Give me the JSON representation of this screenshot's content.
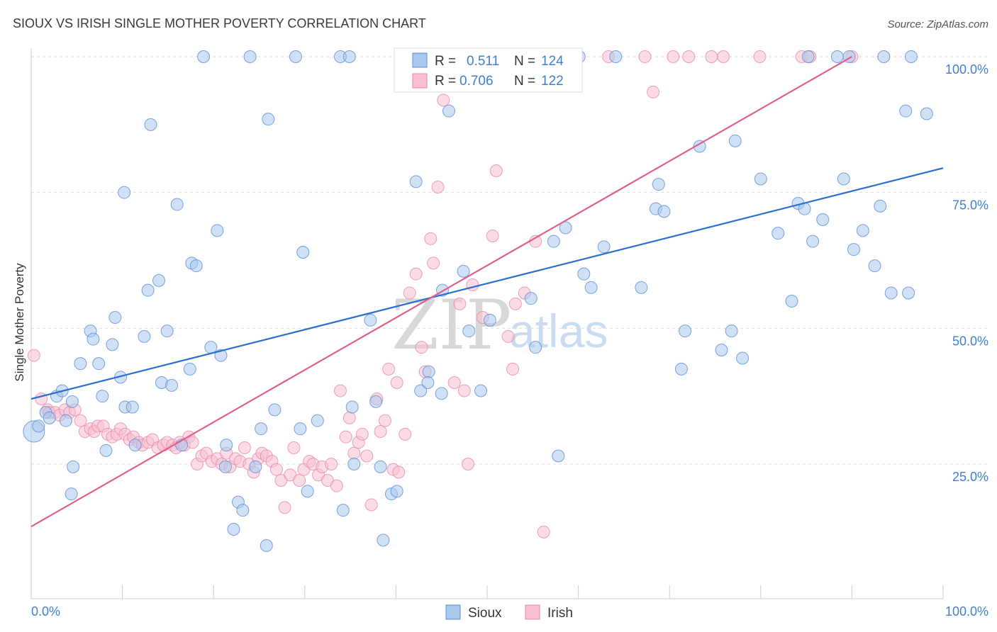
{
  "title": "SIOUX VS IRISH SINGLE MOTHER POVERTY CORRELATION CHART",
  "source": "Source: ZipAtlas.com",
  "watermark": {
    "zip": "ZIP",
    "atlas": "atlas"
  },
  "colors": {
    "sioux_fill": "#a9c8ee",
    "sioux_stroke": "#5b8fd6",
    "sioux_line": "#2a6fd0",
    "irish_fill": "#f7bfd0",
    "irish_stroke": "#e98aa8",
    "irish_line": "#e0608a",
    "tick_text": "#3f7fd0",
    "grid": "#dddddd"
  },
  "legend_top": {
    "rows": [
      {
        "r_label": "R = ",
        "r_value": "0.511",
        "n_label": "N = ",
        "n_value": "124"
      },
      {
        "r_label": "R = ",
        "r_value": "0.706",
        "n_label": "N = ",
        "n_value": "122"
      }
    ]
  },
  "legend_bottom": {
    "items": [
      "Sioux",
      "Irish"
    ]
  },
  "chart_data": {
    "type": "scatter",
    "title": "SIOUX VS IRISH SINGLE MOTHER POVERTY CORRELATION CHART",
    "xlabel": "",
    "ylabel": "Single Mother Poverty",
    "xlim": [
      0,
      100
    ],
    "ylim": [
      0,
      103
    ],
    "x_tick_labels": [
      "0.0%",
      "100.0%"
    ],
    "y_ticks": [
      25,
      50,
      75,
      100
    ],
    "y_tick_labels": [
      "25.0%",
      "50.0%",
      "75.0%",
      "100.0%"
    ],
    "grid": "horizontal dashed",
    "series": [
      {
        "name": "Sioux",
        "R": 0.511,
        "N": 124,
        "trend": {
          "x": [
            0,
            100
          ],
          "y": [
            37.0,
            79.5
          ]
        },
        "points": [
          [
            0.3,
            31.0
          ],
          [
            0.8,
            32.0
          ],
          [
            1.6,
            34.5
          ],
          [
            2.0,
            33.5
          ],
          [
            2.8,
            37.5
          ],
          [
            3.4,
            38.5
          ],
          [
            3.8,
            33.0
          ],
          [
            4.5,
            36.5
          ],
          [
            4.6,
            24.5
          ],
          [
            4.4,
            19.5
          ],
          [
            5.4,
            43.5
          ],
          [
            6.5,
            49.5
          ],
          [
            6.8,
            48.0
          ],
          [
            7.4,
            43.5
          ],
          [
            7.8,
            37.5
          ],
          [
            8.2,
            27.5
          ],
          [
            8.9,
            47.0
          ],
          [
            9.2,
            52.0
          ],
          [
            9.8,
            41.0
          ],
          [
            10.3,
            35.5
          ],
          [
            11.1,
            35.5
          ],
          [
            10.2,
            75.0
          ],
          [
            11.4,
            28.5
          ],
          [
            12.4,
            48.5
          ],
          [
            12.8,
            57.0
          ],
          [
            13.1,
            87.5
          ],
          [
            14.0,
            58.8
          ],
          [
            14.3,
            40.0
          ],
          [
            14.9,
            49.5
          ],
          [
            15.4,
            39.5
          ],
          [
            16.0,
            72.8
          ],
          [
            16.5,
            28.5
          ],
          [
            17.4,
            42.5
          ],
          [
            17.6,
            62.0
          ],
          [
            18.1,
            61.5
          ],
          [
            18.9,
            100.0
          ],
          [
            19.7,
            46.5
          ],
          [
            20.4,
            68.0
          ],
          [
            20.8,
            45.0
          ],
          [
            21.4,
            28.5
          ],
          [
            21.3,
            24.5
          ],
          [
            22.2,
            13.0
          ],
          [
            22.7,
            18.0
          ],
          [
            23.2,
            16.5
          ],
          [
            24.0,
            100.0
          ],
          [
            24.6,
            24.5
          ],
          [
            25.2,
            31.5
          ],
          [
            25.8,
            10.0
          ],
          [
            26.0,
            88.5
          ],
          [
            26.7,
            35.0
          ],
          [
            29.0,
            100.0
          ],
          [
            29.5,
            31.5
          ],
          [
            29.8,
            64.0
          ],
          [
            30.3,
            20.0
          ],
          [
            31.4,
            33.0
          ],
          [
            33.9,
            100.0
          ],
          [
            34.2,
            16.5
          ],
          [
            34.9,
            100.0
          ],
          [
            35.2,
            35.5
          ],
          [
            35.4,
            25.0
          ],
          [
            37.2,
            51.5
          ],
          [
            37.8,
            36.5
          ],
          [
            38.3,
            24.5
          ],
          [
            38.6,
            11.0
          ],
          [
            39.5,
            19.5
          ],
          [
            40.1,
            20.0
          ],
          [
            42.2,
            77.0
          ],
          [
            42.7,
            38.5
          ],
          [
            43.6,
            42.0
          ],
          [
            43.5,
            40.0
          ],
          [
            45.0,
            38.0
          ],
          [
            45.1,
            57.0
          ],
          [
            45.8,
            90.0
          ],
          [
            47.4,
            60.5
          ],
          [
            48.0,
            49.5
          ],
          [
            49.3,
            38.5
          ],
          [
            50.3,
            51.5
          ],
          [
            54.8,
            55.5
          ],
          [
            55.3,
            46.5
          ],
          [
            57.3,
            66.0
          ],
          [
            56.8,
            100.0
          ],
          [
            57.8,
            26.5
          ],
          [
            58.6,
            68.5
          ],
          [
            60.1,
            100.0
          ],
          [
            60.6,
            60.0
          ],
          [
            61.4,
            57.5
          ],
          [
            62.8,
            65.0
          ],
          [
            64.1,
            100.0
          ],
          [
            66.9,
            57.5
          ],
          [
            68.5,
            72.0
          ],
          [
            68.8,
            76.5
          ],
          [
            69.4,
            71.5
          ],
          [
            71.3,
            42.5
          ],
          [
            71.7,
            49.5
          ],
          [
            73.3,
            83.5
          ],
          [
            75.7,
            46.0
          ],
          [
            76.8,
            49.5
          ],
          [
            77.2,
            84.5
          ],
          [
            78.0,
            44.5
          ],
          [
            80.0,
            77.5
          ],
          [
            81.9,
            67.5
          ],
          [
            83.4,
            55.0
          ],
          [
            84.1,
            73.0
          ],
          [
            84.8,
            72.0
          ],
          [
            85.2,
            100.0
          ],
          [
            85.7,
            66.0
          ],
          [
            86.8,
            70.0
          ],
          [
            88.4,
            100.0
          ],
          [
            89.1,
            77.5
          ],
          [
            89.7,
            100.0
          ],
          [
            90.2,
            64.5
          ],
          [
            91.2,
            68.0
          ],
          [
            92.5,
            61.5
          ],
          [
            93.1,
            72.5
          ],
          [
            93.5,
            100.0
          ],
          [
            94.3,
            56.5
          ],
          [
            95.9,
            90.0
          ],
          [
            96.2,
            56.5
          ],
          [
            96.5,
            100.0
          ],
          [
            98.2,
            89.5
          ]
        ]
      },
      {
        "name": "Irish",
        "R": 0.706,
        "N": 122,
        "trend": {
          "x": [
            0,
            90
          ],
          "y": [
            13.5,
            100.0
          ]
        },
        "points": [
          [
            0.3,
            45.0
          ],
          [
            1.1,
            37.0
          ],
          [
            1.8,
            35.0
          ],
          [
            2.0,
            34.5
          ],
          [
            2.6,
            34.5
          ],
          [
            3.1,
            34.0
          ],
          [
            3.7,
            35.0
          ],
          [
            4.2,
            34.5
          ],
          [
            4.8,
            35.0
          ],
          [
            5.4,
            33.0
          ],
          [
            5.9,
            31.0
          ],
          [
            6.5,
            31.5
          ],
          [
            6.9,
            31.0
          ],
          [
            7.3,
            32.0
          ],
          [
            7.9,
            32.0
          ],
          [
            8.4,
            30.5
          ],
          [
            8.9,
            30.0
          ],
          [
            9.4,
            30.5
          ],
          [
            9.8,
            31.5
          ],
          [
            10.3,
            30.5
          ],
          [
            10.8,
            29.5
          ],
          [
            11.2,
            30.0
          ],
          [
            11.8,
            29.0
          ],
          [
            12.2,
            28.5
          ],
          [
            12.8,
            29.0
          ],
          [
            13.3,
            29.5
          ],
          [
            13.9,
            28.0
          ],
          [
            14.5,
            28.5
          ],
          [
            14.9,
            29.0
          ],
          [
            15.5,
            28.5
          ],
          [
            15.9,
            28.0
          ],
          [
            16.3,
            29.0
          ],
          [
            16.8,
            28.5
          ],
          [
            17.3,
            30.0
          ],
          [
            17.7,
            29.0
          ],
          [
            18.2,
            25.0
          ],
          [
            18.7,
            26.5
          ],
          [
            19.2,
            27.0
          ],
          [
            19.8,
            25.5
          ],
          [
            20.4,
            26.0
          ],
          [
            20.9,
            25.0
          ],
          [
            21.4,
            27.0
          ],
          [
            21.8,
            24.5
          ],
          [
            22.4,
            26.0
          ],
          [
            22.9,
            25.5
          ],
          [
            23.4,
            28.0
          ],
          [
            23.9,
            25.0
          ],
          [
            24.4,
            23.5
          ],
          [
            24.9,
            26.0
          ],
          [
            25.3,
            27.0
          ],
          [
            25.8,
            26.5
          ],
          [
            26.4,
            25.5
          ],
          [
            26.9,
            24.0
          ],
          [
            27.4,
            22.0
          ],
          [
            27.8,
            17.0
          ],
          [
            28.4,
            23.0
          ],
          [
            28.8,
            28.0
          ],
          [
            29.4,
            22.0
          ],
          [
            29.9,
            24.0
          ],
          [
            30.5,
            25.5
          ],
          [
            30.9,
            25.0
          ],
          [
            31.5,
            23.0
          ],
          [
            31.9,
            24.5
          ],
          [
            32.5,
            22.0
          ],
          [
            32.9,
            25.0
          ],
          [
            33.5,
            21.0
          ],
          [
            33.9,
            38.5
          ],
          [
            34.5,
            30.0
          ],
          [
            34.9,
            33.5
          ],
          [
            35.4,
            27.0
          ],
          [
            35.9,
            29.0
          ],
          [
            36.3,
            30.5
          ],
          [
            36.8,
            26.5
          ],
          [
            37.3,
            17.5
          ],
          [
            37.9,
            37.0
          ],
          [
            38.3,
            31.0
          ],
          [
            38.8,
            33.0
          ],
          [
            39.2,
            42.5
          ],
          [
            39.7,
            24.0
          ],
          [
            40.1,
            40.0
          ],
          [
            40.3,
            23.5
          ],
          [
            41.0,
            30.5
          ],
          [
            41.5,
            56.5
          ],
          [
            42.2,
            60.0
          ],
          [
            42.8,
            46.5
          ],
          [
            43.2,
            42.0
          ],
          [
            43.8,
            66.5
          ],
          [
            44.1,
            62.0
          ],
          [
            44.6,
            76.0
          ],
          [
            45.2,
            92.0
          ],
          [
            45.8,
            100.0
          ],
          [
            46.4,
            40.0
          ],
          [
            47.0,
            54.5
          ],
          [
            47.5,
            38.5
          ],
          [
            47.9,
            25.0
          ],
          [
            48.4,
            58.0
          ],
          [
            49.0,
            100.0
          ],
          [
            49.5,
            52.0
          ],
          [
            50.0,
            100.0
          ],
          [
            50.6,
            67.0
          ],
          [
            51.0,
            79.0
          ],
          [
            51.5,
            100.0
          ],
          [
            52.3,
            48.5
          ],
          [
            52.8,
            42.5
          ],
          [
            53.1,
            54.5
          ],
          [
            54.1,
            56.5
          ],
          [
            54.4,
            100.0
          ],
          [
            55.3,
            66.0
          ],
          [
            56.2,
            12.5
          ],
          [
            57.0,
            100.0
          ],
          [
            57.9,
            100.0
          ],
          [
            63.3,
            100.0
          ],
          [
            67.3,
            100.0
          ],
          [
            68.2,
            93.5
          ],
          [
            70.4,
            100.0
          ],
          [
            72.1,
            100.0
          ],
          [
            74.6,
            100.0
          ],
          [
            75.9,
            100.0
          ],
          [
            79.9,
            100.0
          ],
          [
            84.5,
            100.0
          ],
          [
            85.4,
            100.0
          ],
          [
            90.0,
            100.0
          ]
        ]
      }
    ]
  }
}
